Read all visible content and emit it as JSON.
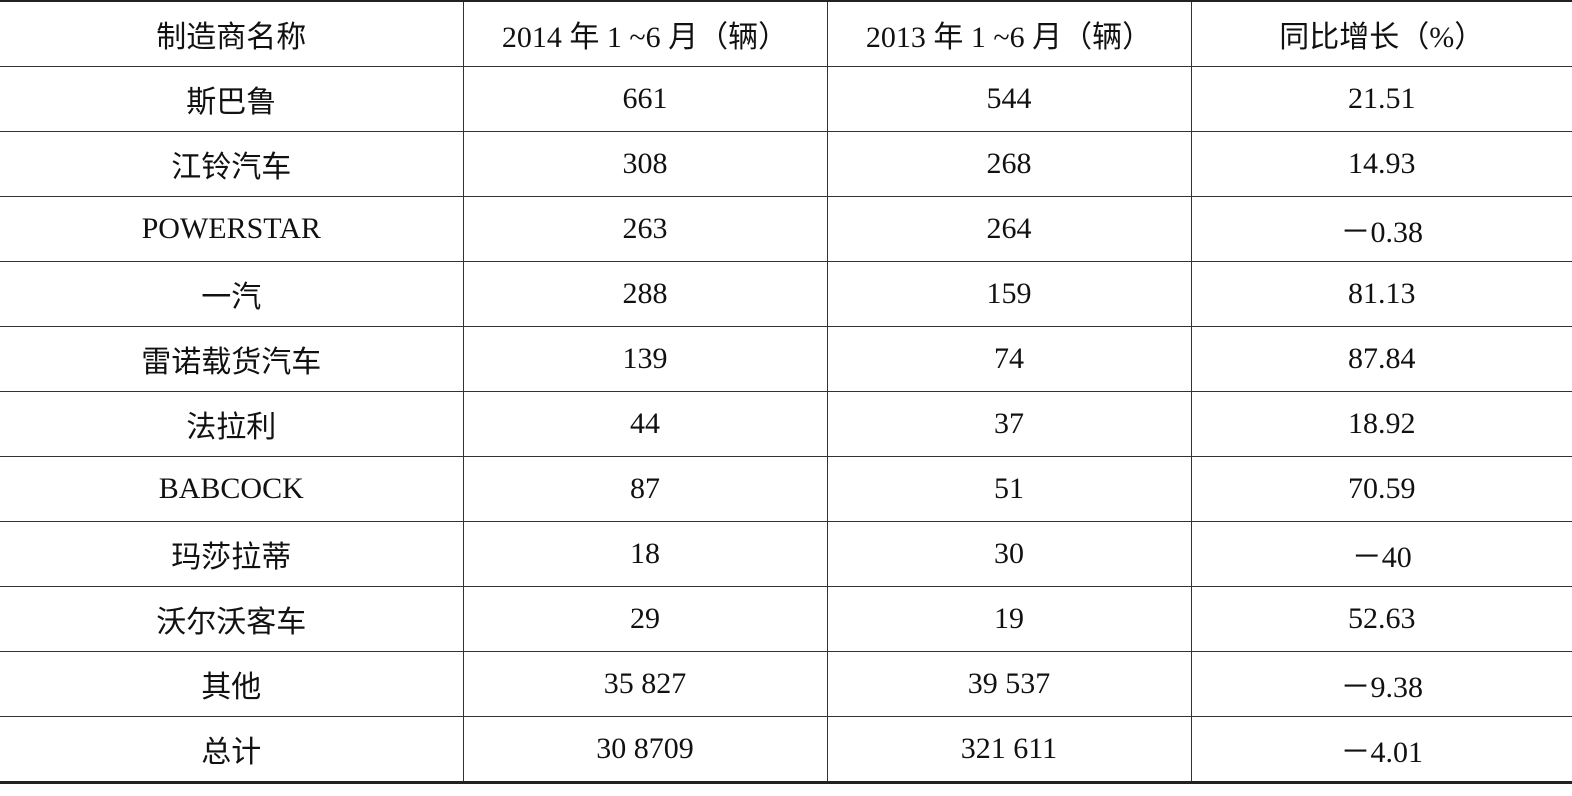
{
  "table": {
    "header": [
      "制造商名称",
      "2014 年 1 ~6 月（辆）",
      "2013 年 1 ~6 月（辆）",
      "同比增长（%）"
    ],
    "rows": [
      [
        "斯巴鲁",
        "661",
        "544",
        "21.51"
      ],
      [
        "江铃汽车",
        "308",
        "268",
        "14.93"
      ],
      [
        "POWERSTAR",
        "263",
        "264",
        "－0.38"
      ],
      [
        "一汽",
        "288",
        "159",
        "81.13"
      ],
      [
        "雷诺载货汽车",
        "139",
        "74",
        "87.84"
      ],
      [
        "法拉利",
        "44",
        "37",
        "18.92"
      ],
      [
        "BABCOCK",
        "87",
        "51",
        "70.59"
      ],
      [
        "玛莎拉蒂",
        "18",
        "30",
        "－40"
      ],
      [
        "沃尔沃客车",
        "29",
        "19",
        "52.63"
      ],
      [
        "其他",
        "35 827",
        "39 537",
        "－9.38"
      ],
      [
        "总计",
        "30 8709",
        "321 611",
        "－4.01"
      ]
    ]
  }
}
